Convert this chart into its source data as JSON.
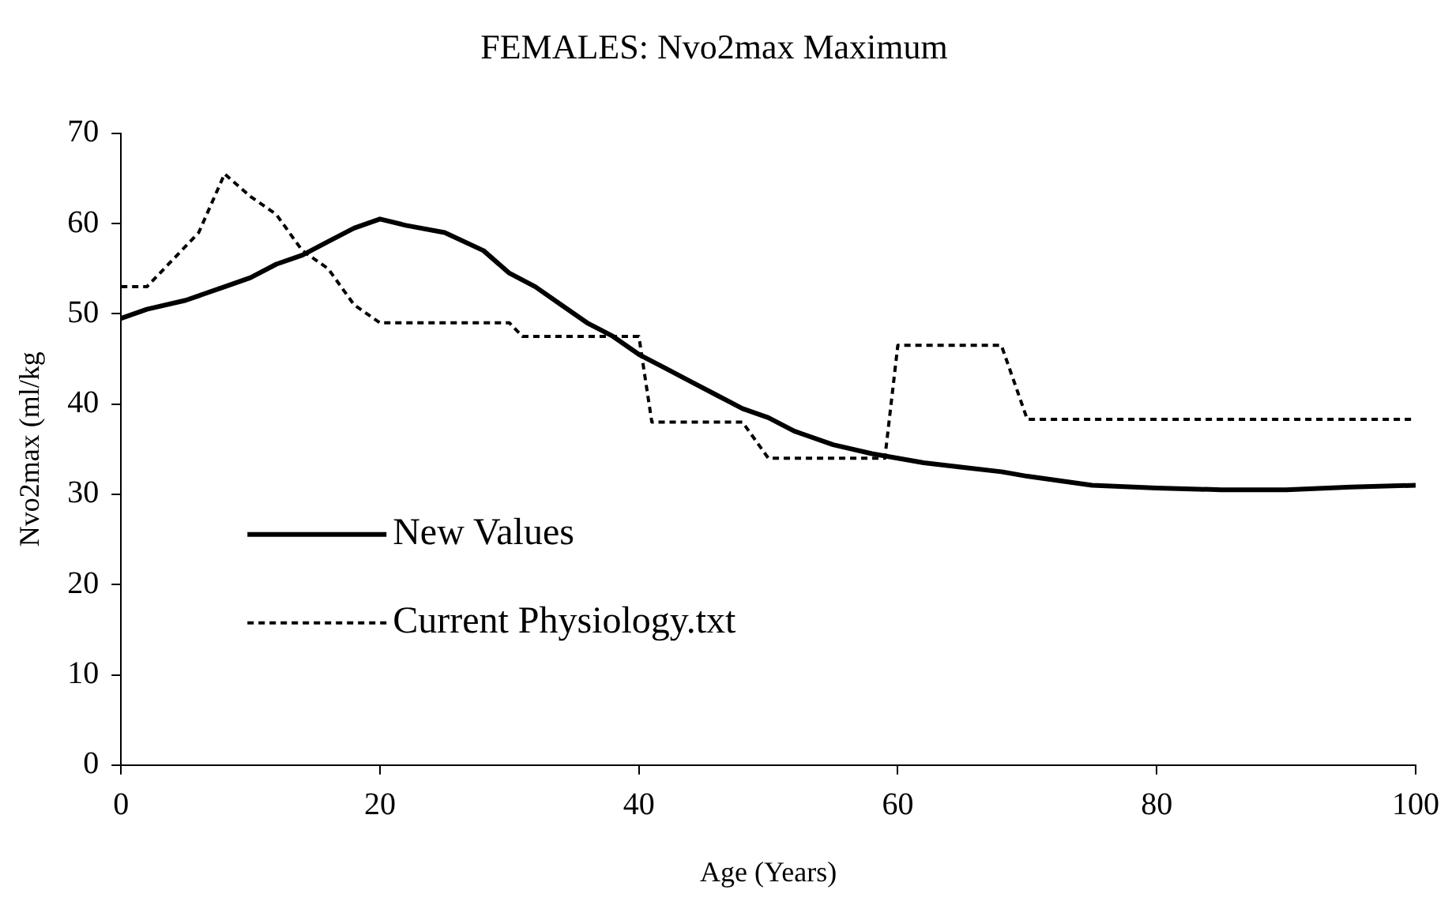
{
  "chart_data": {
    "type": "line",
    "title": "FEMALES: Nvo2max Maximum",
    "xlabel": "Age (Years)",
    "ylabel": "Nvo2max (ml/kg",
    "xlim": [
      0,
      100
    ],
    "xticks": [
      0,
      20,
      40,
      60,
      80,
      100
    ],
    "ylim": [
      0,
      70
    ],
    "yticks": [
      0,
      10,
      20,
      30,
      40,
      50,
      60,
      70
    ],
    "grid": false,
    "legend": "bottom left",
    "marker": "none",
    "series": [
      {
        "name": "New Values",
        "color": "#000000",
        "line_style": "solid",
        "x": [
          0,
          2,
          5,
          8,
          10,
          12,
          14,
          16,
          18,
          20,
          22,
          25,
          28,
          30,
          32,
          34,
          36,
          38,
          40,
          42,
          44,
          46,
          48,
          50,
          52,
          55,
          58,
          60,
          62,
          65,
          68,
          70,
          75,
          80,
          85,
          90,
          95,
          100
        ],
        "values": [
          49.5,
          50.5,
          51.5,
          53,
          54,
          55.5,
          56.5,
          58,
          59.5,
          60.5,
          59.8,
          59,
          57,
          54.5,
          53,
          51,
          49,
          47.5,
          45.5,
          44,
          42.5,
          41,
          39.5,
          38.5,
          37,
          35.5,
          34.5,
          34,
          33.5,
          33,
          32.5,
          32,
          31,
          30.7,
          30.5,
          30.5,
          30.8,
          31
        ]
      },
      {
        "name": "Current Physiology.txt",
        "color": "#000000",
        "line_style": "dotted",
        "x": [
          0,
          2,
          4,
          6,
          8,
          10,
          12,
          14,
          16,
          18,
          19,
          20,
          30,
          31,
          39,
          40,
          41,
          48,
          50,
          59,
          60,
          68,
          70,
          100
        ],
        "values": [
          53,
          53,
          56,
          59,
          65.5,
          63,
          61,
          57,
          55,
          51,
          50,
          49,
          49,
          47.5,
          47.5,
          47.5,
          38,
          38,
          34,
          34,
          46.5,
          46.5,
          38.3,
          38.3
        ]
      }
    ]
  }
}
